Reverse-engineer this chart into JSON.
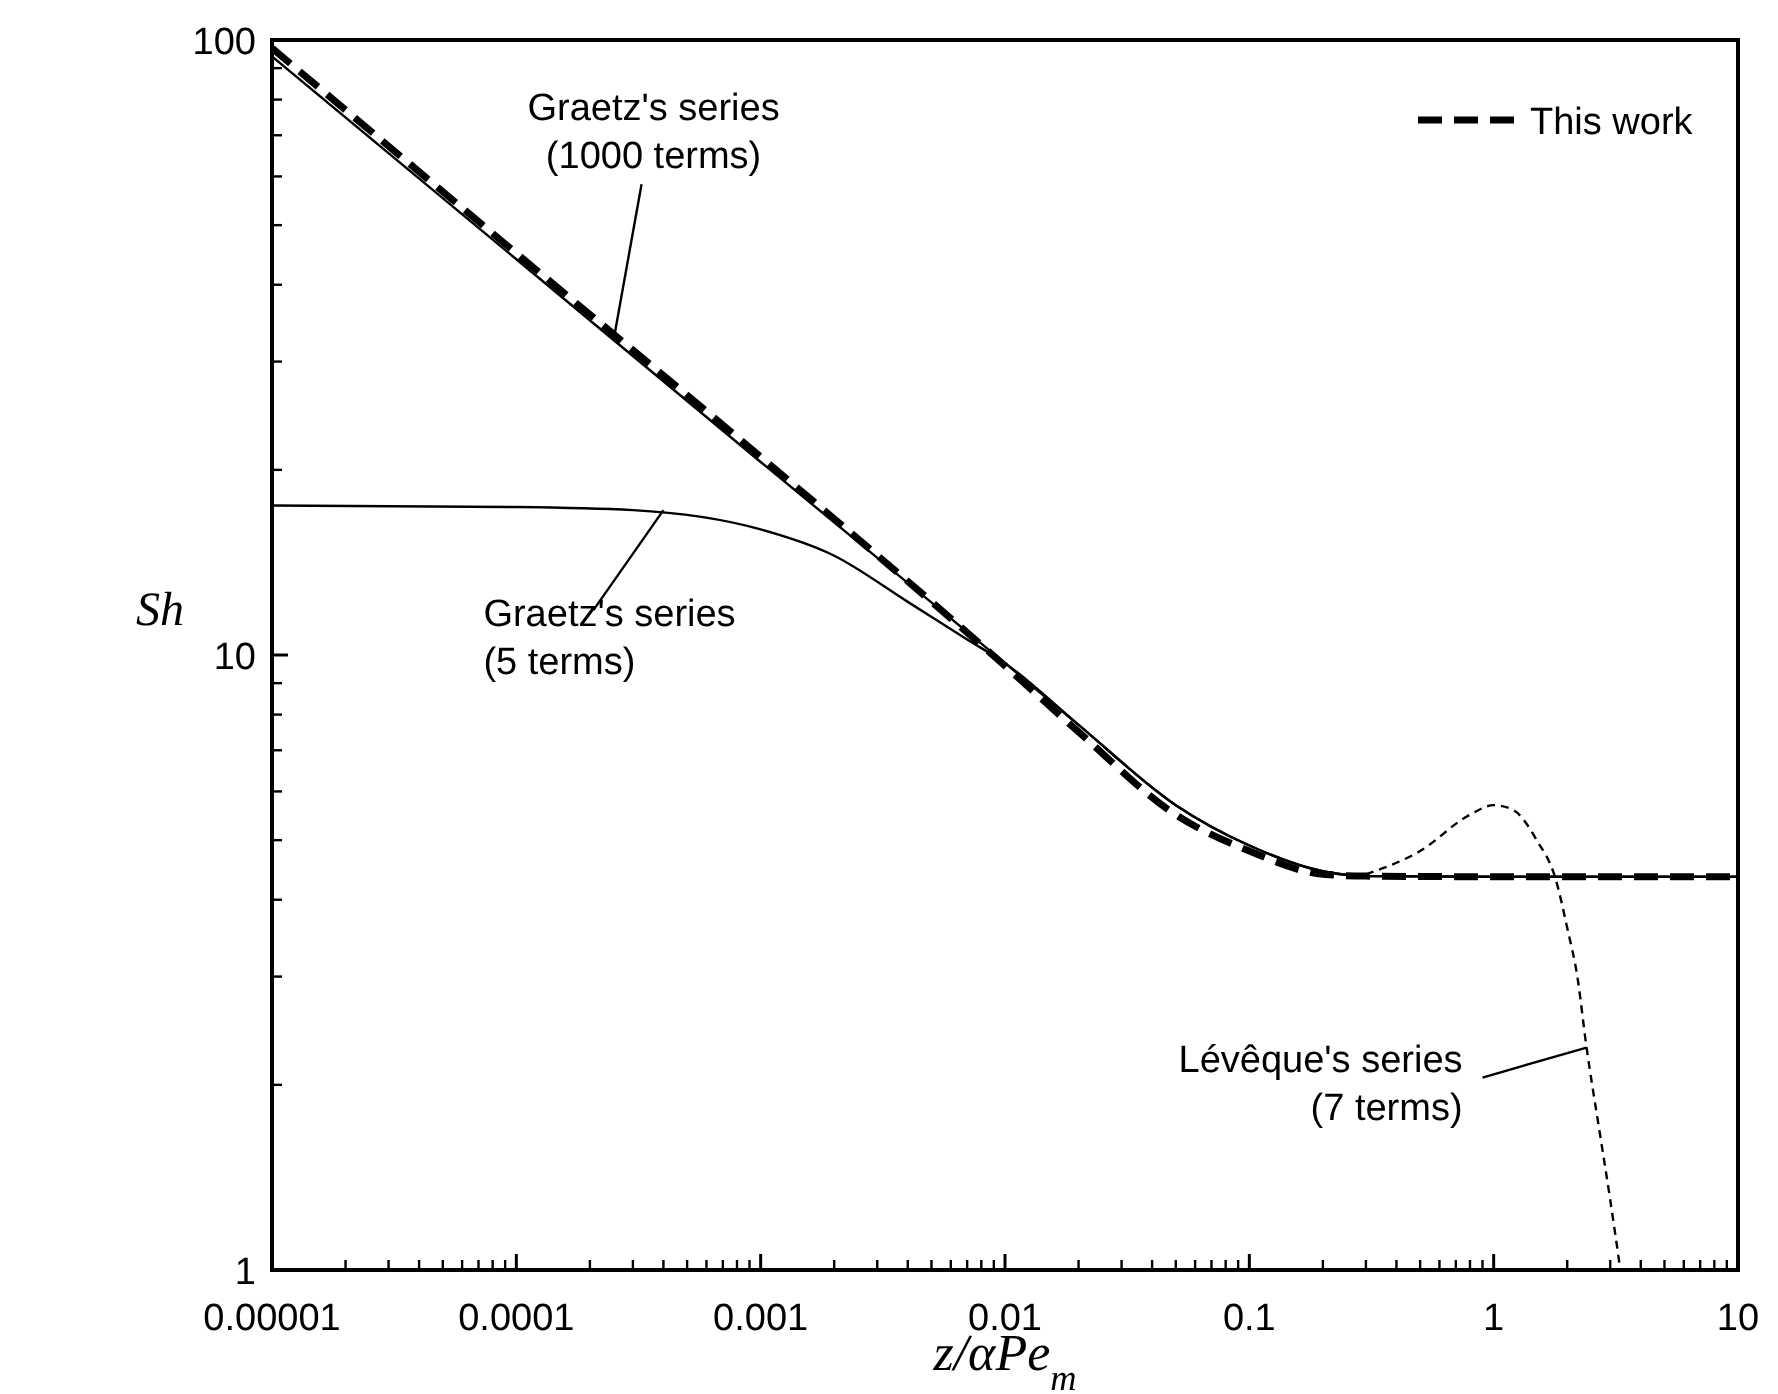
{
  "chart_data": {
    "type": "line",
    "xlabel": "z/αPe$_{m}$",
    "ylabel": "Sh",
    "log": "xy",
    "xlim": [
      1e-05,
      10
    ],
    "xticks": [
      {
        "value": 1e-05,
        "label": "0.00001"
      },
      0.0001,
      0.001,
      0.01,
      0.1,
      1,
      10
    ],
    "ylim": [
      1,
      100
    ],
    "yticks": [
      1,
      10,
      100
    ],
    "grid": false,
    "legend": "top right",
    "marker": "none",
    "series": [
      {
        "name": "This work",
        "color": "#000000",
        "line_style": "dashed",
        "x": [
          1e-05,
          0.0001,
          0.001,
          0.01,
          0.02,
          0.05,
          0.1,
          0.2,
          0.3,
          1,
          10
        ],
        "values": [
          97,
          45,
          21,
          9.6,
          7.5,
          5.5,
          4.8,
          4.4,
          4.37,
          4.36,
          4.36
        ]
      },
      {
        "color": "#000000",
        "line_style": "solid",
        "x": [
          1e-05,
          0.0001,
          0.001,
          0.01,
          0.02,
          0.05,
          0.1,
          0.2,
          0.3,
          1,
          10
        ],
        "values": [
          94,
          44,
          20.6,
          9.7,
          7.7,
          5.7,
          4.9,
          4.45,
          4.37,
          4.36,
          4.36
        ]
      },
      {
        "color": "#000000",
        "line_style": "solid",
        "x": [
          1e-05,
          0.0001,
          0.0003,
          0.001,
          0.002,
          0.004,
          0.007,
          0.01,
          0.02,
          0.05,
          0.1,
          0.2,
          0.3,
          1,
          10
        ],
        "values": [
          17.5,
          17.4,
          17.2,
          16,
          14.5,
          12.2,
          10.6,
          9.7,
          7.7,
          5.7,
          4.9,
          4.45,
          4.37,
          4.36,
          4.36
        ]
      },
      {
        "color": "#000000",
        "line_style": "dotted",
        "x": [
          0.3,
          0.5,
          0.8,
          1,
          1.2,
          1.5,
          1.8,
          2,
          2.2,
          2.4,
          2.7,
          3,
          3.3
        ],
        "values": [
          4.4,
          4.8,
          5.5,
          5.7,
          5.6,
          5,
          4.3,
          3.6,
          3,
          2.3,
          1.7,
          1.3,
          1
        ]
      }
    ],
    "annotations": [
      {
        "text": "Graetz's series\n(1000 terms)",
        "x": 0.00025,
        "y": 32.5
      },
      {
        "text": "Graetz's series\n(5 terms)",
        "x": 0.0004,
        "y": 17.2
      },
      {
        "text": "Lévêque's series\n(7 terms)",
        "x": 2.4,
        "y": 2.3
      }
    ]
  }
}
